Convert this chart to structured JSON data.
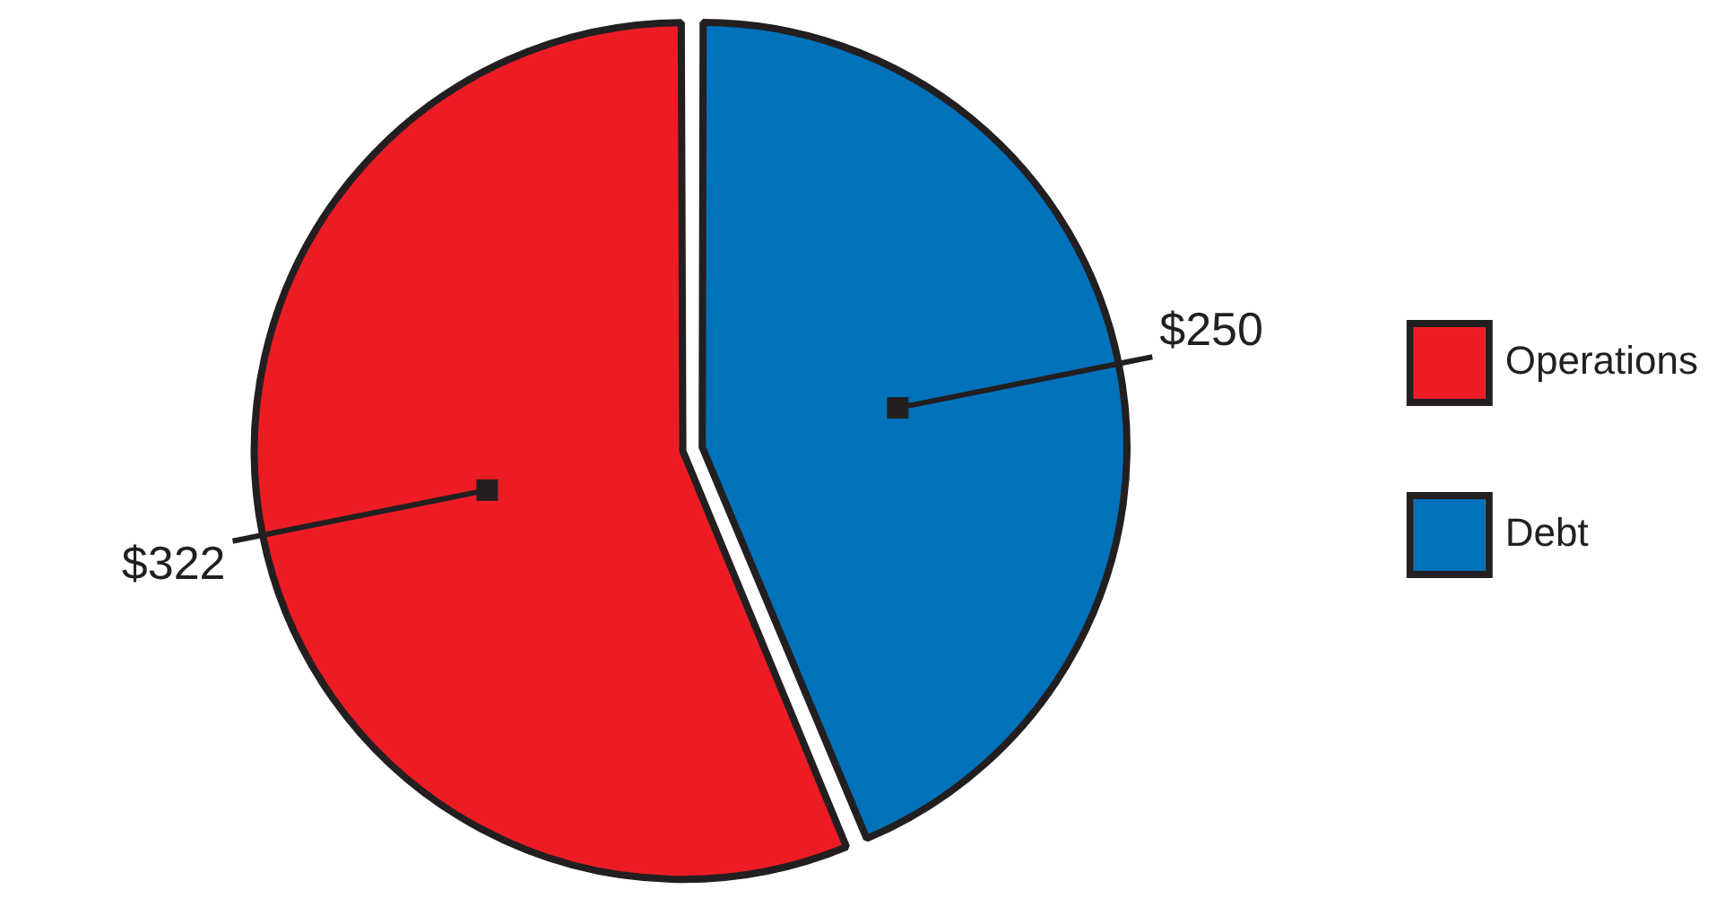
{
  "chart_data": {
    "type": "pie",
    "categories": [
      "Operations",
      "Debt"
    ],
    "values": [
      322,
      250
    ],
    "colors": [
      "#ed1c24",
      "#0072bc"
    ],
    "value_labels": [
      "$322",
      "$250"
    ],
    "legend": "right"
  }
}
